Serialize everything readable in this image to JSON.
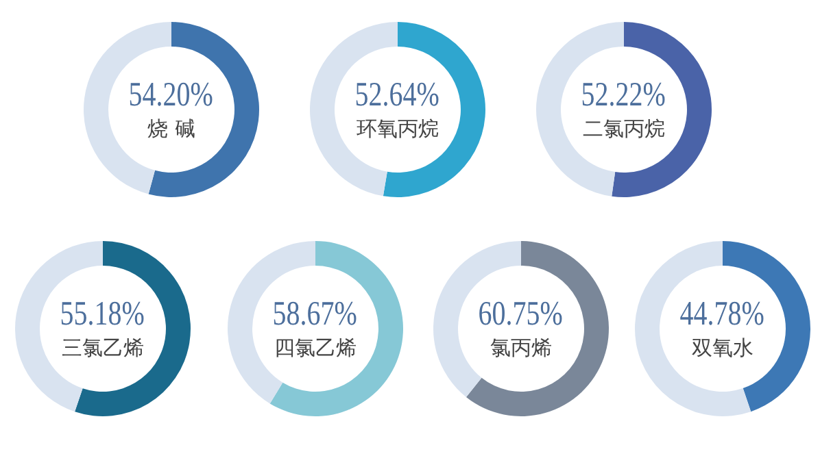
{
  "chart_data": [
    {
      "type": "donut",
      "categories": [
        "烧 碱",
        null
      ],
      "values": [
        54.2,
        45.8
      ],
      "colors": [
        "#3f74ad",
        "#d9e3f0"
      ],
      "value_labels": [
        "54.20%",
        null
      ]
    },
    {
      "type": "donut",
      "categories": [
        "环氧丙烷",
        null
      ],
      "values": [
        52.64,
        47.36
      ],
      "colors": [
        "#2fa6cf",
        "#d9e3f0"
      ],
      "value_labels": [
        "52.64%",
        null
      ]
    },
    {
      "type": "donut",
      "categories": [
        "二氯丙烷",
        null
      ],
      "values": [
        52.22,
        47.78
      ],
      "colors": [
        "#4a63a8",
        "#d9e3f0"
      ],
      "value_labels": [
        "52.22%",
        null
      ]
    },
    {
      "type": "donut",
      "categories": [
        "三氯乙烯",
        null
      ],
      "values": [
        55.18,
        44.82
      ],
      "colors": [
        "#1a6a8c",
        "#d9e3f0"
      ],
      "value_labels": [
        "55.18%",
        null
      ]
    },
    {
      "type": "donut",
      "categories": [
        "四氯乙烯",
        null
      ],
      "values": [
        58.67,
        41.33
      ],
      "colors": [
        "#86c8d6",
        "#d9e3f0"
      ],
      "value_labels": [
        "58.67%",
        null
      ]
    },
    {
      "type": "donut",
      "categories": [
        "氯丙烯",
        null
      ],
      "values": [
        60.75,
        39.25
      ],
      "colors": [
        "#7a8799",
        "#d9e3f0"
      ],
      "value_labels": [
        "60.75%",
        null
      ]
    },
    {
      "type": "donut",
      "categories": [
        "双氧水",
        null
      ],
      "values": [
        44.78,
        55.22
      ],
      "colors": [
        "#3d78b5",
        "#d9e3f0"
      ],
      "value_labels": [
        "44.78%",
        null
      ]
    }
  ]
}
